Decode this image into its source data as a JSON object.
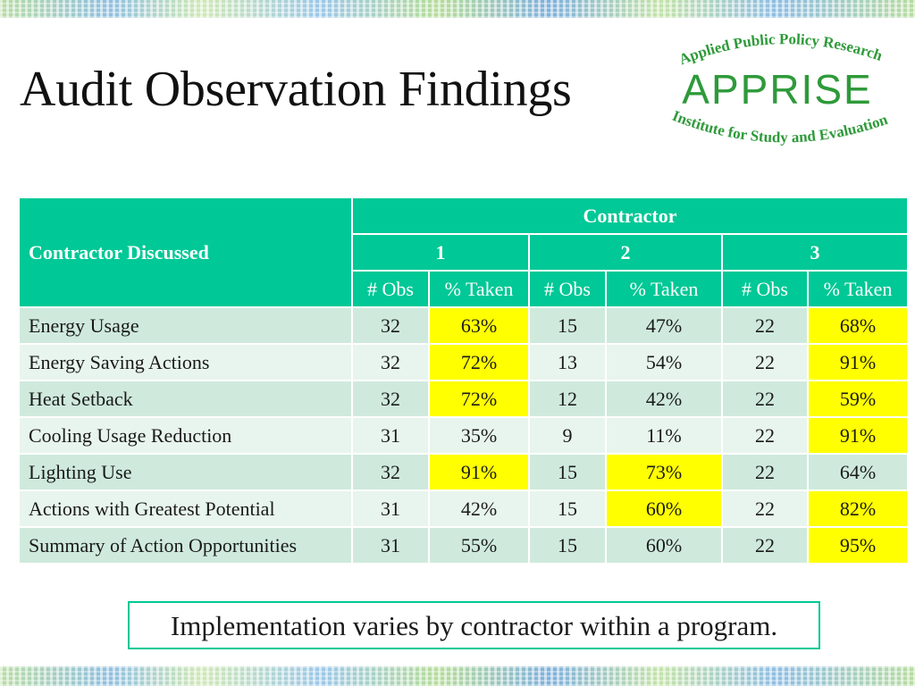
{
  "slide": {
    "title": "Audit Observation Findings",
    "note": "Implementation varies by contractor within a program."
  },
  "logo": {
    "arc_top": "Applied Public Policy Research",
    "wordmark": "APPRISE",
    "arc_bottom": "Institute for Study and Evaluation",
    "color": "#2e9a3a"
  },
  "table": {
    "row_header": "Contractor Discussed",
    "group_header": "Contractor",
    "contractors": [
      "1",
      "2",
      "3"
    ],
    "sub_headers": [
      "# Obs",
      "% Taken",
      "# Obs",
      "% Taken",
      "# Obs",
      "% Taken"
    ],
    "rows": [
      {
        "label": "Energy Usage",
        "cells": [
          "32",
          "63%",
          "15",
          "47%",
          "22",
          "68%"
        ]
      },
      {
        "label": "Energy Saving Actions",
        "cells": [
          "32",
          "72%",
          "13",
          "54%",
          "22",
          "91%"
        ]
      },
      {
        "label": "Heat Setback",
        "cells": [
          "32",
          "72%",
          "12",
          "42%",
          "22",
          "59%"
        ]
      },
      {
        "label": "Cooling Usage Reduction",
        "cells": [
          "31",
          "35%",
          "9",
          "11%",
          "22",
          "91%"
        ]
      },
      {
        "label": "Lighting Use",
        "cells": [
          "32",
          "91%",
          "15",
          "73%",
          "22",
          "64%"
        ]
      },
      {
        "label": "Actions with Greatest Potential",
        "cells": [
          "31",
          "42%",
          "15",
          "60%",
          "22",
          "82%"
        ]
      },
      {
        "label": "Summary of Action Opportunities",
        "cells": [
          "31",
          "55%",
          "15",
          "60%",
          "22",
          "95%"
        ]
      }
    ],
    "highlighted": [
      [
        false,
        true,
        false,
        false,
        false,
        true
      ],
      [
        false,
        true,
        false,
        false,
        false,
        true
      ],
      [
        false,
        true,
        false,
        false,
        false,
        true
      ],
      [
        false,
        false,
        false,
        false,
        false,
        true
      ],
      [
        false,
        true,
        false,
        true,
        false,
        false
      ],
      [
        false,
        false,
        false,
        true,
        false,
        true
      ],
      [
        false,
        false,
        false,
        false,
        false,
        true
      ]
    ],
    "colors": {
      "header": "#00c896",
      "row_dark": "#cfeadd",
      "row_light": "#e8f5ee",
      "highlight": "#ffff00"
    }
  }
}
